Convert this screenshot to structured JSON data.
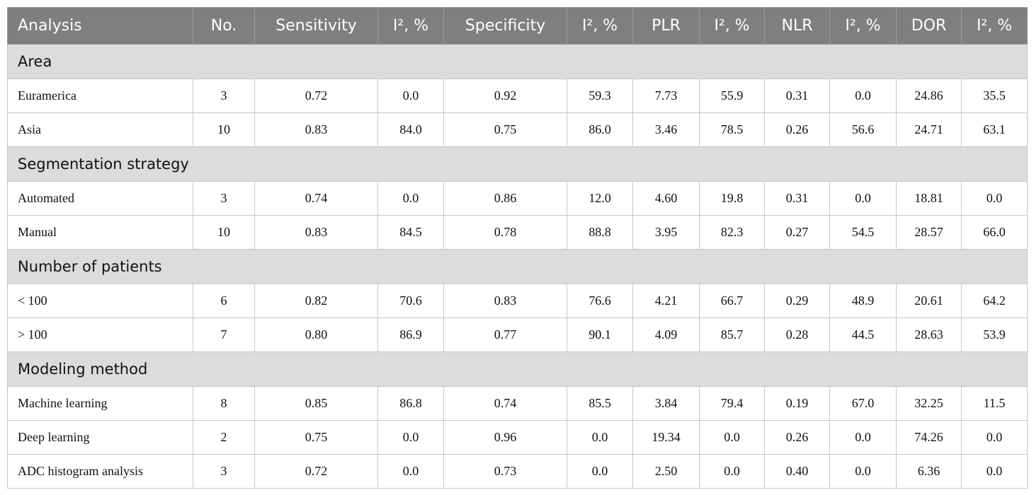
{
  "header": [
    "Analysis",
    "No.",
    "Sensitivity",
    "I², %",
    "Specificity",
    "I², %",
    "PLR",
    "I², %",
    "NLR",
    "I², %",
    "DOR",
    "I², %"
  ],
  "sections": [
    {
      "title": "Area",
      "rows": [
        [
          "Euramerica",
          "3",
          "0.72",
          "0.0",
          "0.92",
          "59.3",
          "7.73",
          "55.9",
          "0.31",
          "0.0",
          "24.86",
          "35.5"
        ],
        [
          "Asia",
          "10",
          "0.83",
          "84.0",
          "0.75",
          "86.0",
          "3.46",
          "78.5",
          "0.26",
          "56.6",
          "24.71",
          "63.1"
        ]
      ]
    },
    {
      "title": "Segmentation strategy",
      "rows": [
        [
          "Automated",
          "3",
          "0.74",
          "0.0",
          "0.86",
          "12.0",
          "4.60",
          "19.8",
          "0.31",
          "0.0",
          "18.81",
          "0.0"
        ],
        [
          "Manual",
          "10",
          "0.83",
          "84.5",
          "0.78",
          "88.8",
          "3.95",
          "82.3",
          "0.27",
          "54.5",
          "28.57",
          "66.0"
        ]
      ]
    },
    {
      "title": "Number of patients",
      "rows": [
        [
          "< 100",
          "6",
          "0.82",
          "70.6",
          "0.83",
          "76.6",
          "4.21",
          "66.7",
          "0.29",
          "48.9",
          "20.61",
          "64.2"
        ],
        [
          "> 100",
          "7",
          "0.80",
          "86.9",
          "0.77",
          "90.1",
          "4.09",
          "85.7",
          "0.28",
          "44.5",
          "28.63",
          "53.9"
        ]
      ]
    },
    {
      "title": "Modeling method",
      "rows": [
        [
          "Machine learning",
          "8",
          "0.85",
          "86.8",
          "0.74",
          "85.5",
          "3.84",
          "79.4",
          "0.19",
          "67.0",
          "32.25",
          "11.5"
        ],
        [
          "Deep learning",
          "2",
          "0.75",
          "0.0",
          "0.96",
          "0.0",
          "19.34",
          "0.0",
          "0.26",
          "0.0",
          "74.26",
          "0.0"
        ],
        [
          "ADC histogram analysis",
          "3",
          "0.72",
          "0.0",
          "0.73",
          "0.0",
          "2.50",
          "0.0",
          "0.40",
          "0.0",
          "6.36",
          "0.0"
        ]
      ]
    }
  ]
}
